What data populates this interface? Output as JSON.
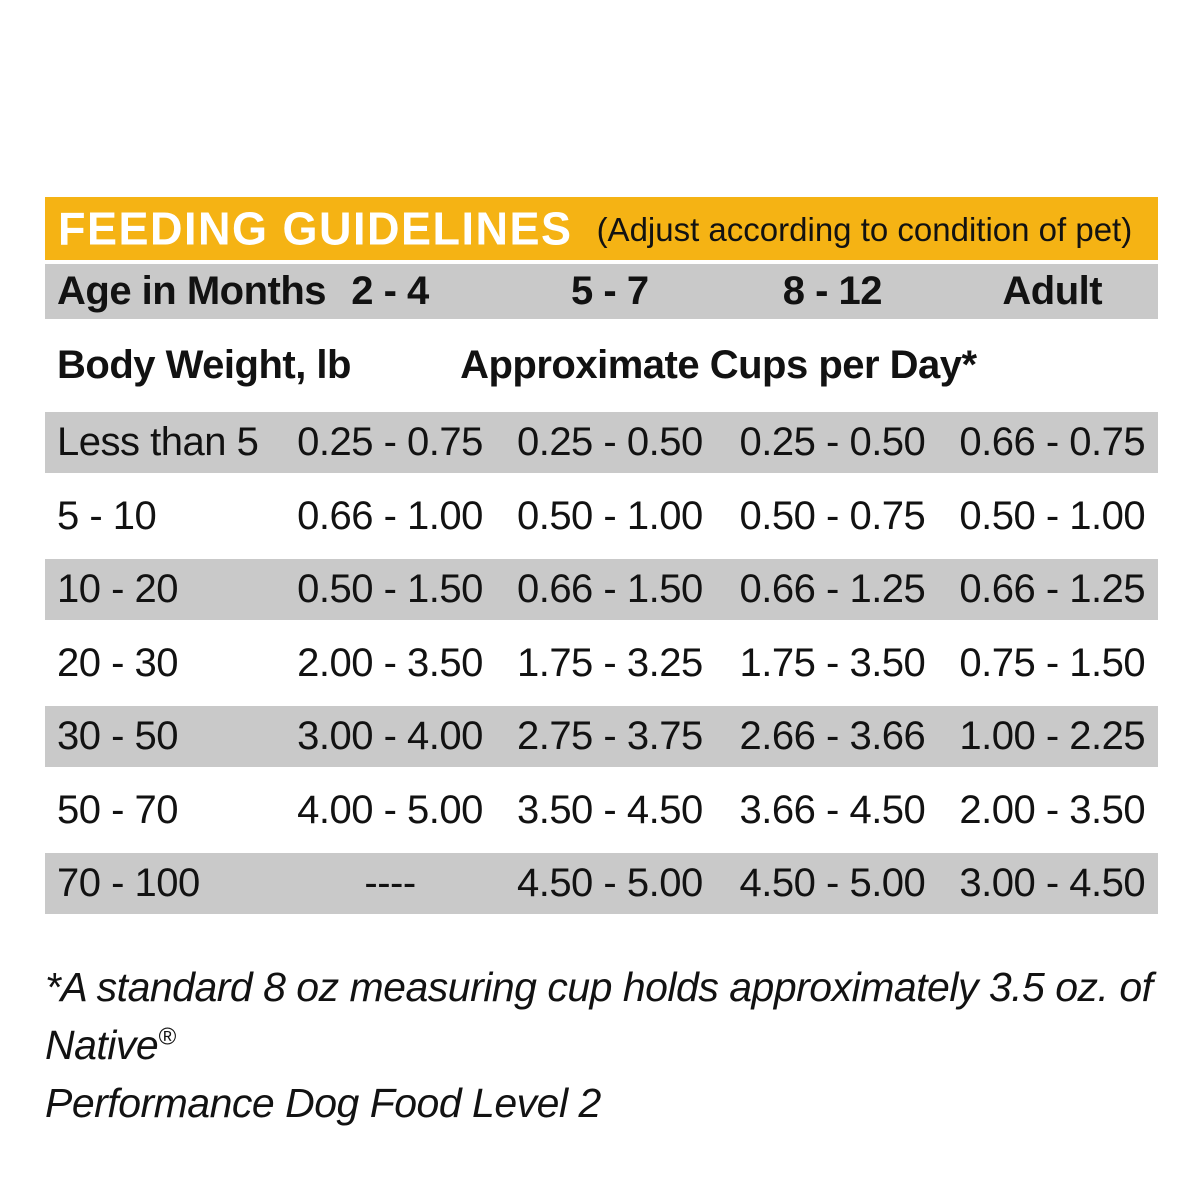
{
  "chart_data": {
    "type": "table",
    "title": "FEEDING GUIDELINES",
    "subtitle": "(Adjust according to condition of pet)",
    "age_header_label": "Age in Months",
    "age_columns": [
      "2 - 4",
      "5 - 7",
      "8 - 12",
      "Adult"
    ],
    "body_weight_label": "Body Weight, lb",
    "cups_per_day_label": "Approximate Cups per Day*",
    "rows": [
      [
        "Less than 5",
        "0.25 - 0.75",
        "0.25 - 0.50",
        "0.25 - 0.50",
        "0.66 - 0.75"
      ],
      [
        "5 - 10",
        "0.66 - 1.00",
        "0.50 - 1.00",
        "0.50 - 0.75",
        "0.50 - 1.00"
      ],
      [
        "10 - 20",
        "0.50 - 1.50",
        "0.66 - 1.50",
        "0.66 - 1.25",
        "0.66 - 1.25"
      ],
      [
        "20 - 30",
        "2.00 - 3.50",
        "1.75 - 3.25",
        "1.75 - 3.50",
        "0.75 - 1.50"
      ],
      [
        "30 - 50",
        "3.00 - 4.00",
        "2.75 - 3.75",
        "2.66 - 3.66",
        "1.00 - 2.25"
      ],
      [
        "50 - 70",
        "4.00 - 5.00",
        "3.50 - 4.50",
        "3.66 - 4.50",
        "2.00 - 3.50"
      ],
      [
        "70 - 100",
        "----",
        "4.50 - 5.00",
        "4.50 - 5.00",
        "3.00 - 4.50"
      ]
    ]
  },
  "footnote": {
    "line1": "*A standard 8 oz measuring cup holds approximately 3.5 oz. of Native",
    "registered_mark": "®",
    "line2": "Performance Dog Food Level 2"
  },
  "colors": {
    "header_bg": "#F5B314",
    "header_title": "#FFFFFF",
    "stripe": "#C9C9C9",
    "text": "#121212"
  }
}
